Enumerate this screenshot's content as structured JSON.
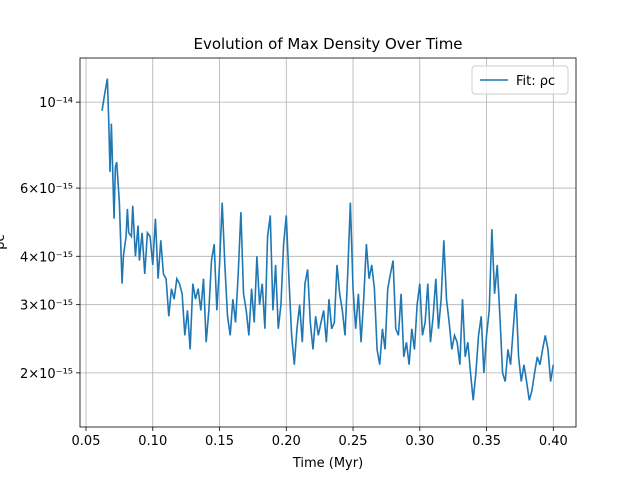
{
  "chart_data": {
    "type": "line",
    "title": "Evolution of Max Density Over Time",
    "xlabel": "Time (Myr)",
    "ylabel": "ρc",
    "log_y": true,
    "grid": true,
    "legend": "upper right",
    "xlim": [
      0.0455,
      0.417
    ],
    "ylim": [
      1.45e-15,
      1.3e-14
    ],
    "xticks": [
      0.05,
      {
        "value": 0.1,
        "label": "0.10"
      },
      0.15,
      {
        "value": 0.2,
        "label": "0.20"
      },
      0.25,
      {
        "value": 0.3,
        "label": "0.30"
      },
      0.35,
      {
        "value": 0.4,
        "label": "0.40"
      }
    ],
    "yticks": [
      {
        "value": 2e-15,
        "label": "2×10⁻¹⁵"
      },
      {
        "value": 3e-15,
        "label": "3×10⁻¹⁵"
      },
      {
        "value": 4e-15,
        "label": "4×10⁻¹⁵"
      },
      {
        "value": 6e-15,
        "label": "6×10⁻¹⁵"
      },
      {
        "value": 1e-14,
        "label": "10⁻¹⁴"
      }
    ],
    "series": [
      {
        "name": "Fit: ρc",
        "color": "#1f77b4",
        "x": [
          0.062,
          0.064,
          0.066,
          0.067,
          0.068,
          0.069,
          0.071,
          0.072,
          0.073,
          0.075,
          0.077,
          0.078,
          0.08,
          0.081,
          0.082,
          0.084,
          0.085,
          0.087,
          0.089,
          0.09,
          0.092,
          0.094,
          0.096,
          0.098,
          0.1,
          0.102,
          0.104,
          0.106,
          0.108,
          0.11,
          0.112,
          0.114,
          0.116,
          0.118,
          0.12,
          0.122,
          0.124,
          0.126,
          0.128,
          0.13,
          0.132,
          0.134,
          0.136,
          0.138,
          0.14,
          0.142,
          0.144,
          0.146,
          0.148,
          0.15,
          0.152,
          0.154,
          0.156,
          0.158,
          0.16,
          0.162,
          0.164,
          0.166,
          0.168,
          0.17,
          0.172,
          0.174,
          0.176,
          0.178,
          0.18,
          0.182,
          0.184,
          0.186,
          0.188,
          0.19,
          0.192,
          0.194,
          0.196,
          0.198,
          0.2,
          0.202,
          0.204,
          0.206,
          0.208,
          0.21,
          0.212,
          0.214,
          0.216,
          0.218,
          0.22,
          0.222,
          0.224,
          0.226,
          0.228,
          0.23,
          0.232,
          0.234,
          0.236,
          0.238,
          0.24,
          0.242,
          0.244,
          0.246,
          0.248,
          0.25,
          0.252,
          0.254,
          0.256,
          0.258,
          0.26,
          0.262,
          0.264,
          0.266,
          0.268,
          0.27,
          0.272,
          0.274,
          0.276,
          0.278,
          0.28,
          0.282,
          0.284,
          0.286,
          0.288,
          0.29,
          0.292,
          0.294,
          0.296,
          0.298,
          0.3,
          0.302,
          0.304,
          0.306,
          0.308,
          0.31,
          0.312,
          0.314,
          0.316,
          0.318,
          0.32,
          0.322,
          0.324,
          0.326,
          0.328,
          0.33,
          0.332,
          0.334,
          0.336,
          0.338,
          0.34,
          0.342,
          0.344,
          0.346,
          0.348,
          0.35,
          0.352,
          0.354,
          0.356,
          0.358,
          0.36,
          0.362,
          0.364,
          0.366,
          0.368,
          0.37,
          0.372,
          0.374,
          0.376,
          0.378,
          0.38,
          0.382,
          0.384,
          0.386,
          0.388,
          0.39,
          0.392,
          0.394,
          0.396,
          0.398,
          0.4
        ],
        "values": [
          9.5e-15,
          1.05e-14,
          1.15e-14,
          9e-15,
          6.6e-15,
          8.8e-15,
          5e-15,
          6.8e-15,
          7e-15,
          5.5e-15,
          3.4e-15,
          4e-15,
          4.5e-15,
          5.3e-15,
          4.6e-15,
          4.5e-15,
          5.4e-15,
          4e-15,
          4.8e-15,
          3.9e-15,
          4.6e-15,
          3.6e-15,
          4.6e-15,
          4.5e-15,
          3.8e-15,
          5e-15,
          3.5e-15,
          4.4e-15,
          3.6e-15,
          3.5e-15,
          2.8e-15,
          3.3e-15,
          3.1e-15,
          3.5e-15,
          3.4e-15,
          3.2e-15,
          2.5e-15,
          2.9e-15,
          2.3e-15,
          3.4e-15,
          3.1e-15,
          3.3e-15,
          2.9e-15,
          3.5e-15,
          2.4e-15,
          2.9e-15,
          3.9e-15,
          4.3e-15,
          2.9e-15,
          3.8e-15,
          5.5e-15,
          3.8e-15,
          2.8e-15,
          2.5e-15,
          3.1e-15,
          2.7e-15,
          3.6e-15,
          5.2e-15,
          3.2e-15,
          2.9e-15,
          2.5e-15,
          3.3e-15,
          2.7e-15,
          4e-15,
          3e-15,
          3.4e-15,
          2.6e-15,
          4.5e-15,
          5.1e-15,
          2.9e-15,
          3.8e-15,
          2.6e-15,
          3e-15,
          4.3e-15,
          5.1e-15,
          3.5e-15,
          2.5e-15,
          2.1e-15,
          2.6e-15,
          3e-15,
          2.4e-15,
          3.4e-15,
          3.7e-15,
          2.7e-15,
          2.3e-15,
          2.8e-15,
          2.5e-15,
          2.7e-15,
          2.9e-15,
          2.4e-15,
          3.1e-15,
          2.6e-15,
          2.7e-15,
          3.8e-15,
          3.2e-15,
          2.9e-15,
          2.5e-15,
          3.6e-15,
          5.5e-15,
          3.3e-15,
          2.6e-15,
          3.2e-15,
          2.4e-15,
          3.1e-15,
          4.3e-15,
          3.5e-15,
          3.8e-15,
          3.3e-15,
          2.3e-15,
          2.1e-15,
          2.6e-15,
          2.3e-15,
          3.3e-15,
          3.6e-15,
          3.9e-15,
          2.6e-15,
          2.5e-15,
          3.2e-15,
          2.2e-15,
          2.4e-15,
          2.1e-15,
          2.6e-15,
          2.3e-15,
          3e-15,
          3.4e-15,
          2.5e-15,
          2.7e-15,
          3.4e-15,
          2.4e-15,
          2.8e-15,
          3.5e-15,
          2.6e-15,
          3.1e-15,
          4.4e-15,
          3.1e-15,
          2.7e-15,
          2.3e-15,
          2.5e-15,
          2.4e-15,
          2.1e-15,
          3.1e-15,
          2.2e-15,
          2.4e-15,
          2e-15,
          1.7e-15,
          2e-15,
          2.5e-15,
          2.8e-15,
          2e-15,
          2.5e-15,
          2.9e-15,
          4.7e-15,
          3.2e-15,
          3.8e-15,
          2.8e-15,
          2e-15,
          1.9e-15,
          2.3e-15,
          2.1e-15,
          2.6e-15,
          3.2e-15,
          2.2e-15,
          1.9e-15,
          2.1e-15,
          1.9e-15,
          1.7e-15,
          1.8e-15,
          2e-15,
          2.2e-15,
          2.1e-15,
          2.3e-15,
          2.5e-15,
          2.3e-15,
          1.9e-15,
          2.1e-15
        ]
      }
    ]
  }
}
